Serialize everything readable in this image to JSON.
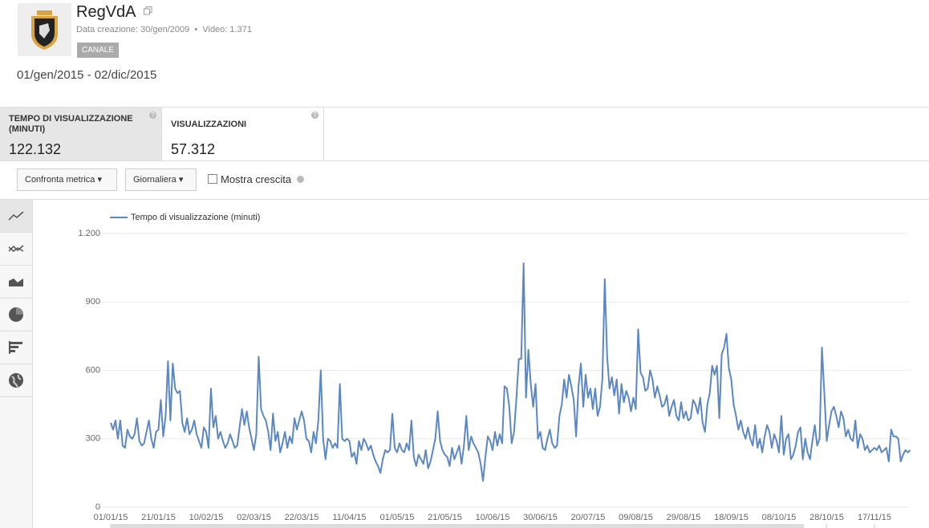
{
  "header": {
    "channel_name": "RegVdA",
    "created": "Data creazione: 30/gen/2009",
    "videos": "Video: 1.371",
    "button": "CANALE",
    "date_range": "01/gen/2015 - 02/dic/2015"
  },
  "metrics": [
    {
      "label": "TEMPO DI VISUALIZZAZIONE (MINUTI)",
      "value": "122.132"
    },
    {
      "label": "VISUALIZZAZIONI",
      "value": "57.312"
    }
  ],
  "controls": {
    "compare": "Confronta metrica",
    "period": "Giornaliera",
    "growth": "Mostra crescita"
  },
  "chart_data": {
    "type": "line",
    "categories": [
      "01/01/15",
      null,
      null,
      null,
      null,
      null,
      null,
      null,
      null,
      null,
      null,
      null,
      null,
      null,
      null,
      null,
      null,
      null,
      null,
      null,
      "21/01/15",
      null,
      null,
      null,
      null,
      null,
      null,
      null,
      null,
      null,
      null,
      null,
      null,
      null,
      null,
      null,
      null,
      null,
      null,
      null,
      "10/02/15",
      null,
      null,
      null,
      null,
      null,
      null,
      null,
      null,
      null,
      null,
      null,
      null,
      null,
      null,
      null,
      null,
      null,
      null,
      null,
      "02/03/15",
      null,
      null,
      null,
      null,
      null,
      null,
      null,
      null,
      null,
      null,
      null,
      null,
      null,
      null,
      null,
      null,
      null,
      null,
      null,
      "22/03/15",
      null,
      null,
      null,
      null,
      null,
      null,
      null,
      null,
      null,
      null,
      null,
      null,
      null,
      null,
      null,
      null,
      null,
      null,
      null,
      "11/04/15",
      null,
      null,
      null,
      null,
      null,
      null,
      null,
      null,
      null,
      null,
      null,
      null,
      null,
      null,
      null,
      null,
      null,
      null,
      null,
      "01/05/15",
      null,
      null,
      null,
      null,
      null,
      null,
      null,
      null,
      null,
      null,
      null,
      null,
      null,
      null,
      null,
      null,
      null,
      null,
      null,
      "21/05/15",
      null,
      null,
      null,
      null,
      null,
      null,
      null,
      null,
      null,
      null,
      null,
      null,
      null,
      null,
      null,
      null,
      null,
      null,
      null,
      "10/06/15",
      null,
      null,
      null,
      null,
      null,
      null,
      null,
      null,
      null,
      null,
      null,
      null,
      null,
      null,
      null,
      null,
      null,
      null,
      null,
      "30/06/15",
      null,
      null,
      null,
      null,
      null,
      null,
      null,
      null,
      null,
      null,
      null,
      null,
      null,
      null,
      null,
      null,
      null,
      null,
      null,
      "20/07/15",
      null,
      null,
      null,
      null,
      null,
      null,
      null,
      null,
      null,
      null,
      null,
      null,
      null,
      null,
      null,
      null,
      null,
      null,
      null,
      "09/08/15",
      null,
      null,
      null,
      null,
      null,
      null,
      null,
      null,
      null,
      null,
      null,
      null,
      null,
      null,
      null,
      null,
      null,
      null,
      null,
      "29/08/15",
      null,
      null,
      null,
      null,
      null,
      null,
      null,
      null,
      null,
      null,
      null,
      null,
      null,
      null,
      null,
      null,
      null,
      null,
      null,
      "18/09/15",
      null,
      null,
      null,
      null,
      null,
      null,
      null,
      null,
      null,
      null,
      null,
      null,
      null,
      null,
      null,
      null,
      null,
      null,
      null,
      "08/10/15",
      null,
      null,
      null,
      null,
      null,
      null,
      null,
      null,
      null,
      null,
      null,
      null,
      null,
      null,
      null,
      null,
      null,
      null,
      null,
      "28/10/15",
      null,
      null,
      null,
      null,
      null,
      null,
      null,
      null,
      null,
      null,
      null,
      null,
      null,
      null,
      null,
      null,
      null,
      null,
      null,
      "17/11/15",
      null,
      null,
      null,
      null,
      null,
      null,
      null,
      null,
      null,
      null,
      null,
      null,
      null,
      null,
      null
    ],
    "series": [
      {
        "name": "Tempo di visualizzazione (minuti)",
        "color": "#5b87c2",
        "values": [
          370,
          340,
          380,
          300,
          380,
          270,
          260,
          340,
          310,
          300,
          320,
          390,
          290,
          270,
          280,
          330,
          380,
          300,
          260,
          330,
          340,
          470,
          310,
          400,
          640,
          380,
          630,
          520,
          500,
          510,
          370,
          330,
          390,
          320,
          340,
          380,
          320,
          290,
          260,
          350,
          330,
          260,
          520,
          350,
          400,
          300,
          330,
          290,
          260,
          280,
          320,
          290,
          260,
          270,
          350,
          430,
          360,
          420,
          350,
          300,
          250,
          320,
          660,
          430,
          400,
          380,
          330,
          250,
          410,
          290,
          330,
          240,
          280,
          330,
          260,
          310,
          280,
          390,
          340,
          380,
          420,
          380,
          300,
          290,
          240,
          330,
          280,
          380,
          600,
          300,
          210,
          300,
          290,
          260,
          280,
          260,
          540,
          300,
          290,
          300,
          290,
          220,
          240,
          190,
          290,
          250,
          300,
          280,
          250,
          270,
          230,
          200,
          180,
          150,
          210,
          250,
          240,
          250,
          410,
          260,
          240,
          280,
          250,
          240,
          280,
          250,
          380,
          220,
          180,
          230,
          210,
          190,
          250,
          170,
          200,
          250,
          300,
          420,
          290,
          250,
          230,
          220,
          180,
          260,
          210,
          240,
          270,
          190,
          270,
          400,
          250,
          310,
          280,
          260,
          240,
          190,
          115,
          220,
          310,
          290,
          250,
          330,
          270,
          320,
          280,
          530,
          520,
          440,
          280,
          330,
          480,
          650,
          650,
          1070,
          480,
          690,
          540,
          440,
          540,
          300,
          330,
          260,
          250,
          300,
          340,
          280,
          260,
          270,
          400,
          450,
          560,
          480,
          580,
          530,
          470,
          310,
          530,
          630,
          440,
          580,
          480,
          520,
          430,
          520,
          400,
          440,
          560,
          1000,
          660,
          520,
          570,
          490,
          560,
          410,
          540,
          460,
          510,
          480,
          420,
          480,
          430,
          780,
          590,
          570,
          510,
          520,
          600,
          560,
          480,
          530,
          490,
          440,
          450,
          490,
          400,
          440,
          470,
          400,
          380,
          460,
          390,
          420,
          380,
          390,
          470,
          450,
          410,
          480,
          370,
          330,
          450,
          500,
          620,
          580,
          620,
          390,
          670,
          700,
          760,
          610,
          560,
          450,
          400,
          340,
          380,
          330,
          300,
          350,
          300,
          270,
          360,
          260,
          300,
          240,
          310,
          360,
          330,
          260,
          320,
          290,
          240,
          400,
          230,
          300,
          320,
          210,
          230,
          270,
          330,
          350,
          210,
          300,
          240,
          210,
          290,
          360,
          270,
          300,
          700,
          500,
          290,
          360,
          420,
          440,
          400,
          350,
          420,
          390,
          310,
          340,
          300,
          290,
          380,
          260,
          320,
          300,
          250,
          270,
          240,
          250,
          260,
          250,
          270,
          240,
          250,
          260,
          200,
          340,
          310,
          310,
          300,
          200,
          230,
          250,
          240,
          250
        ]
      }
    ],
    "ylim": [
      0,
      1200
    ],
    "yticks": [
      0,
      300,
      600,
      900,
      {
        "value": 1200,
        "label": "1.200"
      }
    ],
    "grid": true
  }
}
